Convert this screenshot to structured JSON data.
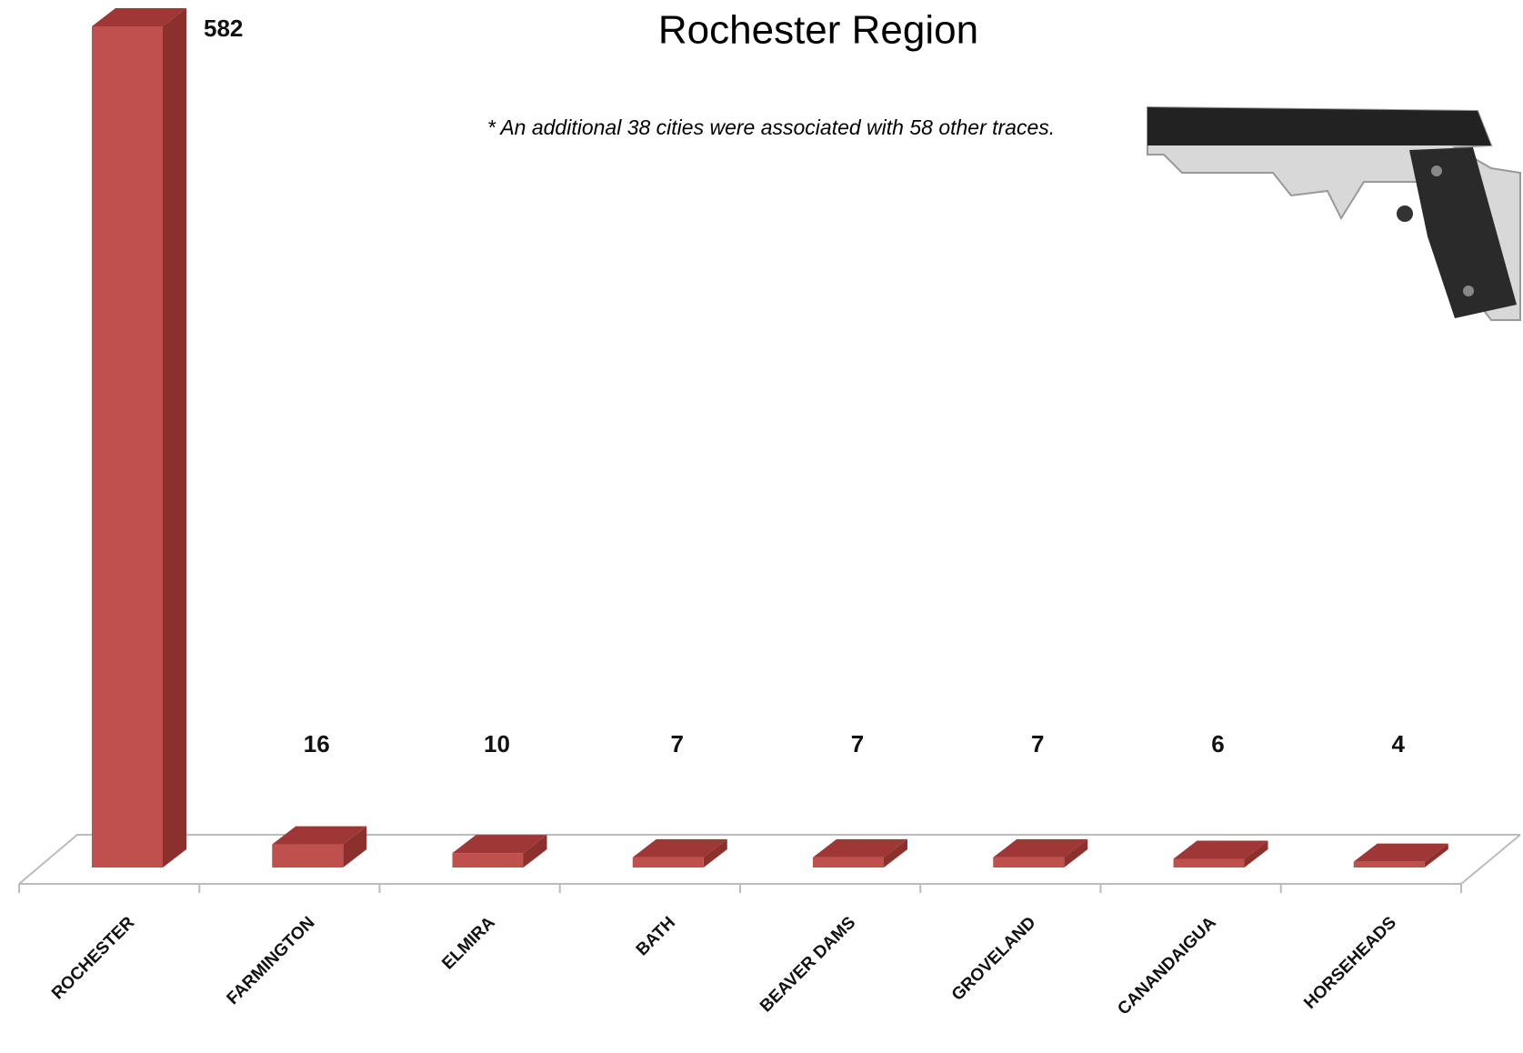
{
  "chart_data": {
    "type": "bar3d",
    "title": "Rochester Region",
    "annotation": "* An additional 38 cities were associated with 58 other traces.",
    "categories": [
      "ROCHESTER",
      "FARMINGTON",
      "ELMIRA",
      "BATH",
      "BEAVER DAMS",
      "GROVELAND",
      "CANANDAIGUA",
      "HORSEHEADS"
    ],
    "values": [
      582,
      16,
      10,
      7,
      7,
      7,
      6,
      4
    ],
    "color": "#c0504d"
  }
}
